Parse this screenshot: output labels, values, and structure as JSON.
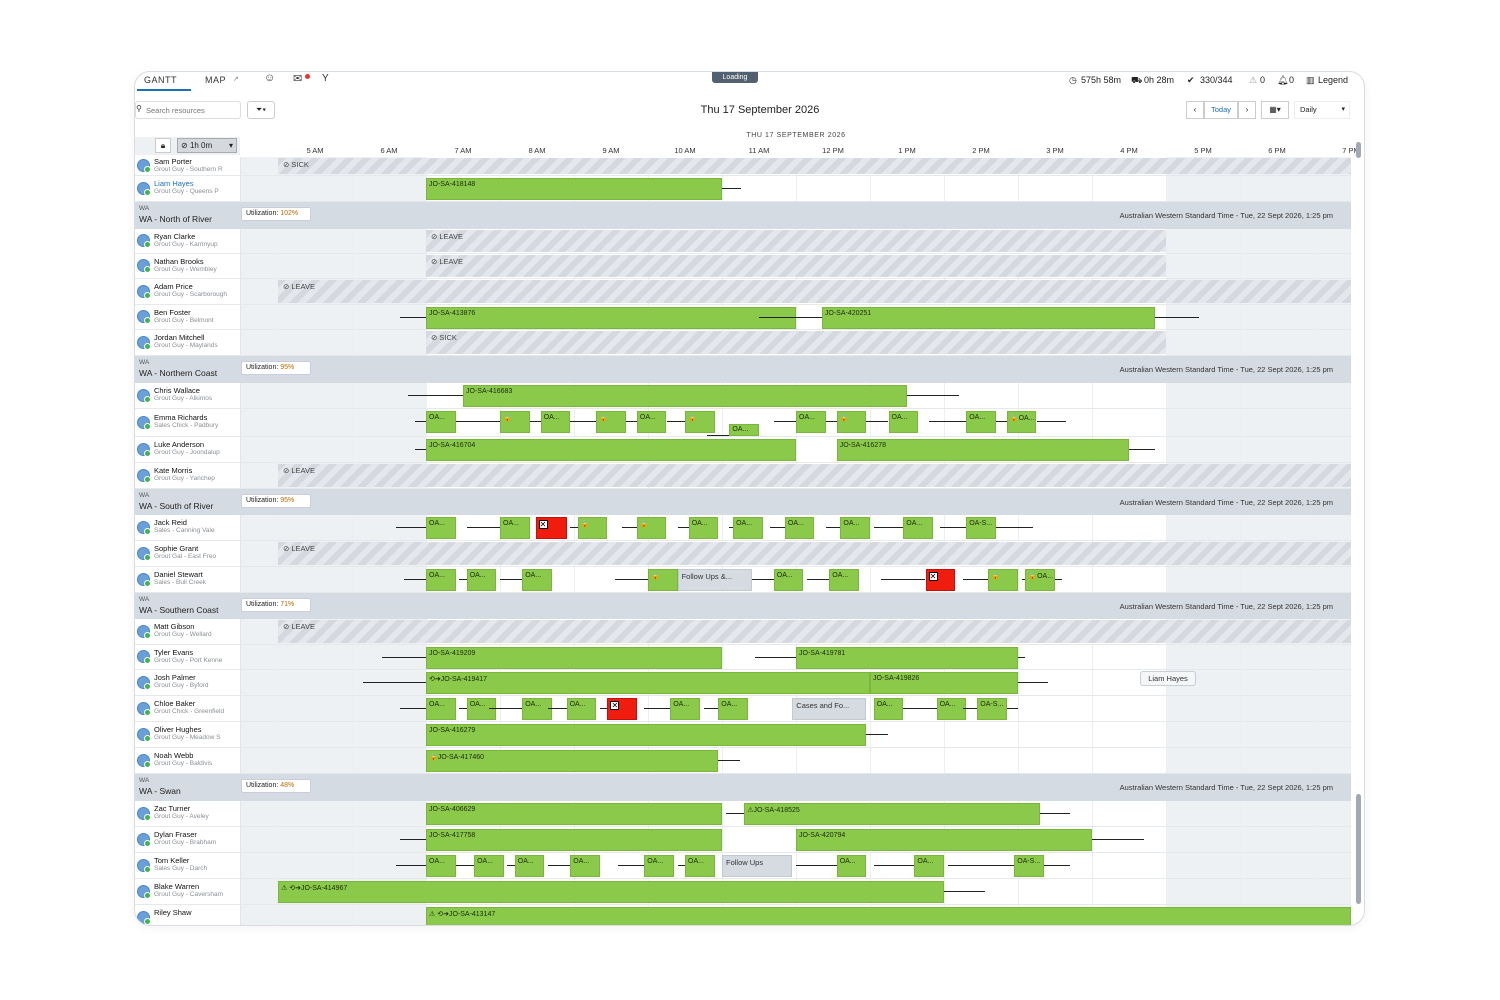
{
  "tabs": [
    {
      "label": "GANTT",
      "active": true
    },
    {
      "label": "MAP",
      "active": false
    }
  ],
  "loading_label": "Loading",
  "stats": {
    "hours": "575h 58m",
    "travel": "0h 28m",
    "appointments": "330/344",
    "rule_violations": "0",
    "notifications": "0",
    "legend": "Legend"
  },
  "toolbar": {
    "search_placeholder": "Search resources",
    "date_title": "Thu 17 September 2026",
    "today_label": "Today",
    "view_label": "Daily",
    "duration_label": "1h 0m"
  },
  "timeline": {
    "date_header": "THU 17 SEPTEMBER 2026",
    "hours": [
      "5 AM",
      "6 AM",
      "7 AM",
      "8 AM",
      "9 AM",
      "10 AM",
      "11 AM",
      "12 PM",
      "1 PM",
      "2 PM",
      "3 PM",
      "4 PM",
      "5 PM",
      "6 PM",
      "7 PM"
    ]
  },
  "timezone_note": "Australian Western Standard Time - Tue, 22 Sept 2026, 1:25 pm",
  "tooltip": "Liam Hayes",
  "rows": [
    {
      "type": "resource",
      "name": "Sam Porter",
      "sub": "Grout Guy - Southern R",
      "h": 19,
      "absence": {
        "label": "SICK",
        "start": 5,
        "end": 20.0
      }
    },
    {
      "type": "resource",
      "name": "Liam Hayes",
      "sub": "Grout Guy - Queens P",
      "link": true,
      "h": 26,
      "jobs": [
        {
          "label": "JO-SA-418148",
          "start": 7.0,
          "end": 11.0,
          "travelAfter": 0.25,
          "travelBefore": 0.0
        }
      ]
    },
    {
      "type": "region",
      "code": "WA",
      "title": "WA - North of River",
      "util": "102%",
      "h": 27
    },
    {
      "type": "resource",
      "name": "Ryan Clarke",
      "sub": "Grout Guy - Karrinyup",
      "h": 25,
      "absence": {
        "label": "LEAVE",
        "start": 7.0,
        "end": 17.0
      }
    },
    {
      "type": "resource",
      "name": "Nathan Brooks",
      "sub": "Grout Guy - Wembley",
      "h": 25,
      "absence": {
        "label": "LEAVE",
        "start": 7.0,
        "end": 17.0
      }
    },
    {
      "type": "resource",
      "name": "Adam Price",
      "sub": "Grout Guy - Scarborough",
      "h": 26,
      "absence": {
        "label": "LEAVE",
        "start": 5,
        "end": 20.0
      }
    },
    {
      "type": "resource",
      "name": "Ben Foster",
      "sub": "Grout Guy - Belmont",
      "h": 25,
      "jobs": [
        {
          "label": "JO-SA-413876",
          "start": 7.0,
          "end": 12.0,
          "travelBefore": 0.35
        },
        {
          "label": "JO-SA-420251",
          "start": 12.35,
          "end": 16.85,
          "travelBefore": 0.85,
          "travelAfter": 0.6
        }
      ]
    },
    {
      "type": "resource",
      "name": "Jordan Mitchell",
      "sub": "Grout Guy - Maylands",
      "h": 26,
      "absence": {
        "label": "SICK",
        "start": 7.0,
        "end": 17.0
      }
    },
    {
      "type": "region",
      "code": "WA",
      "title": "WA - Northern Coast",
      "util": "95%",
      "h": 27
    },
    {
      "type": "resource",
      "name": "Chris Wallace",
      "sub": "Grout Guy - Alkimos",
      "h": 26,
      "jobs": [
        {
          "label": "JO-SA-416683",
          "start": 7.5,
          "end": 13.5,
          "travelBefore": 0.75,
          "travelAfter": 0.7
        }
      ]
    },
    {
      "type": "resource",
      "name": "Emma Richards",
      "sub": "Sales Chick - Padbury",
      "h": 28,
      "small": true,
      "jobs": [
        {
          "label": "OA...",
          "start": 7.0,
          "end": 7.4,
          "travelBefore": 0.15
        },
        {
          "label": "🔒",
          "start": 8.0,
          "end": 8.4,
          "travelBefore": 0.6
        },
        {
          "label": "OA...",
          "start": 8.55,
          "end": 8.95,
          "travelBefore": 0.15
        },
        {
          "label": "🔒",
          "start": 9.3,
          "end": 9.7,
          "travelBefore": 0.35
        },
        {
          "label": "OA...",
          "start": 9.85,
          "end": 10.25,
          "travelBefore": 0.15
        },
        {
          "label": "🔒",
          "start": 10.5,
          "end": 10.9,
          "travelBefore": 0.25
        },
        {
          "label": "OA...",
          "start": 12.0,
          "end": 12.4,
          "travelBefore": 0.3
        },
        {
          "label": "🔒",
          "start": 12.55,
          "end": 12.95,
          "travelBefore": 0.15
        },
        {
          "label": "OA...",
          "start": 13.25,
          "end": 13.65,
          "travelBefore": 0.3
        },
        {
          "label": "OA...",
          "start": 14.3,
          "end": 14.7,
          "travelBefore": 0.5
        },
        {
          "label": "🔒OA...",
          "start": 14.85,
          "end": 15.25,
          "travelBefore": 0.15,
          "travelAfter": 0.4
        },
        {
          "label": "OA...",
          "start": 11.1,
          "end": 11.5,
          "travelBefore": 0.3,
          "lower": true
        }
      ]
    },
    {
      "type": "resource",
      "name": "Luke Anderson",
      "sub": "Grout Guy - Joondalup",
      "h": 26,
      "jobs": [
        {
          "label": "JO-SA-416704",
          "start": 7.0,
          "end": 12.0,
          "travelBefore": 0.15
        },
        {
          "label": "JO-SA-416278",
          "start": 12.55,
          "end": 16.5,
          "travelAfter": 0.35
        }
      ]
    },
    {
      "type": "resource",
      "name": "Kate Morris",
      "sub": "Grout Guy - Yanchep",
      "h": 26,
      "absence": {
        "label": "LEAVE",
        "start": 5,
        "end": 20.0
      }
    },
    {
      "type": "region",
      "code": "WA",
      "title": "WA - South of River",
      "util": "95%",
      "h": 26
    },
    {
      "type": "resource",
      "name": "Jack Reid",
      "sub": "Sales - Canning Vale",
      "h": 26,
      "small": true,
      "jobs": [
        {
          "label": "OA...",
          "start": 7.0,
          "end": 7.4,
          "travelBefore": 0.4
        },
        {
          "label": "OA...",
          "start": 8.0,
          "end": 8.4,
          "travelBefore": 0.45
        },
        {
          "label": "X",
          "start": 8.0,
          "end": 8.0,
          "red": true,
          "rstart": 8.48,
          "rend": 8.9
        },
        {
          "label": "🔒",
          "start": 9.05,
          "end": 9.45,
          "travelBefore": 0.1
        },
        {
          "label": "🔒",
          "start": 9.85,
          "end": 10.25,
          "travelBefore": 0.2
        },
        {
          "label": "OA...",
          "start": 10.55,
          "end": 10.95,
          "travelBefore": 0.15
        },
        {
          "label": "OA...",
          "start": 11.15,
          "end": 11.55,
          "travelBefore": 0.05
        },
        {
          "label": "OA...",
          "start": 11.85,
          "end": 12.25,
          "travelBefore": 0.2
        },
        {
          "label": "OA...",
          "start": 12.6,
          "end": 13.0,
          "travelBefore": 0.2
        },
        {
          "label": "OA...",
          "start": 13.45,
          "end": 13.85,
          "travelBefore": 0.4
        },
        {
          "label": "OA-S...",
          "start": 14.3,
          "end": 14.7,
          "travelBefore": 0.35,
          "travelAfter": 0.5
        }
      ]
    },
    {
      "type": "resource",
      "name": "Sophie Grant",
      "sub": "Grout Gal - East Freo",
      "h": 26,
      "absence": {
        "label": "LEAVE",
        "start": 5,
        "end": 20.0
      }
    },
    {
      "type": "resource",
      "name": "Daniel Stewart",
      "sub": "Sales - Bull Creek",
      "h": 26,
      "small": true,
      "jobs": [
        {
          "label": "OA...",
          "start": 7.0,
          "end": 7.4,
          "travelBefore": 0.3
        },
        {
          "label": "OA...",
          "start": 7.55,
          "end": 7.95,
          "travelBefore": 0.1
        },
        {
          "label": "OA...",
          "start": 8.3,
          "end": 8.7,
          "travelBefore": 0.3
        },
        {
          "label": "🔒",
          "start": 10.0,
          "end": 10.4,
          "travelBefore": 0.45
        },
        {
          "label": "Follow Ups &...",
          "start": 10.4,
          "end": 11.4,
          "grey": true
        },
        {
          "label": "OA...",
          "start": 11.7,
          "end": 12.1,
          "travelBefore": 0.3
        },
        {
          "label": "OA...",
          "start": 12.45,
          "end": 12.85,
          "travelBefore": 0.3
        },
        {
          "label": "X",
          "start": 13.75,
          "end": 14.15,
          "red": true,
          "travelBefore": 0.6
        },
        {
          "label": "🔒",
          "start": 14.6,
          "end": 15.0,
          "travelBefore": 0.35
        },
        {
          "label": "🔒OA...",
          "start": 15.1,
          "end": 15.5,
          "travelBefore": 0.05,
          "travelAfter": 0.1
        }
      ]
    },
    {
      "type": "region",
      "code": "WA",
      "title": "WA - Southern Coast",
      "util": "71%",
      "h": 26
    },
    {
      "type": "resource",
      "name": "Matt Gibson",
      "sub": "Grout Guy - Wellard",
      "h": 26,
      "absence": {
        "label": "LEAVE",
        "start": 5,
        "end": 20.0
      }
    },
    {
      "type": "resource",
      "name": "Tyler Evans",
      "sub": "Grout Guy - Port Kenne",
      "h": 25,
      "jobs": [
        {
          "label": "JO-SA-419209",
          "start": 7.0,
          "end": 11.0,
          "travelBefore": 0.6
        },
        {
          "label": "JO-SA-419781",
          "start": 12.0,
          "end": 15.0,
          "travelBefore": 0.55,
          "travelAfter": 0.1
        }
      ]
    },
    {
      "type": "resource",
      "name": "Josh Palmer",
      "sub": "Grout Guy - Byford",
      "h": 26,
      "jobs": [
        {
          "label": "⟲➜JO-SA-419417",
          "start": 7.0,
          "end": 13.0,
          "travelBefore": 0.85
        },
        {
          "label": "JO-SA-419826",
          "start": 13.0,
          "end": 15.0,
          "travelAfter": 0.4
        }
      ]
    },
    {
      "type": "resource",
      "name": "Chloe Baker",
      "sub": "Grout Chick - Greenfield",
      "h": 26,
      "small": true,
      "jobs": [
        {
          "label": "OA...",
          "start": 7.0,
          "end": 7.4,
          "travelBefore": 0.35
        },
        {
          "label": "OA...",
          "start": 7.55,
          "end": 7.95,
          "travelBefore": 0.1
        },
        {
          "label": "OA...",
          "start": 8.3,
          "end": 8.7,
          "travelBefore": 0.45
        },
        {
          "label": "OA...",
          "start": 8.9,
          "end": 9.3,
          "travelBefore": 0.25
        },
        {
          "label": "X",
          "start": 9.45,
          "end": 9.85,
          "red": true,
          "travelBefore": 0.1
        },
        {
          "label": "OA...",
          "start": 10.3,
          "end": 10.7,
          "travelBefore": 0.35
        },
        {
          "label": "OA...",
          "start": 10.95,
          "end": 11.35,
          "travelBefore": 0.2
        },
        {
          "label": "Cases and Fo...",
          "start": 11.95,
          "end": 12.95,
          "grey": true
        },
        {
          "label": "OA...",
          "start": 13.05,
          "end": 13.45
        },
        {
          "label": "OA...",
          "start": 13.9,
          "end": 14.3,
          "travelBefore": 0.45
        },
        {
          "label": "OA-S...",
          "start": 14.45,
          "end": 14.85,
          "travelBefore": 0.2,
          "travelAfter": 0.15
        }
      ]
    },
    {
      "type": "resource",
      "name": "Oliver Hughes",
      "sub": "Grout Guy - Meadow S",
      "h": 26,
      "jobs": [
        {
          "label": "JO-SA-416279",
          "start": 7.0,
          "end": 12.95,
          "travelAfter": 0.3
        }
      ]
    },
    {
      "type": "resource",
      "name": "Noah Webb",
      "sub": "Grout Guy - Baldivis",
      "h": 26,
      "jobs": [
        {
          "label": "🔒JO-SA-417460",
          "start": 7.0,
          "end": 10.95,
          "travelAfter": 0.3
        }
      ]
    },
    {
      "type": "region",
      "code": "WA",
      "title": "WA - Swan",
      "util": "48%",
      "h": 27
    },
    {
      "type": "resource",
      "name": "Zac Turner",
      "sub": "Grout Guy - Aveley",
      "h": 26,
      "jobs": [
        {
          "label": "JO-SA-406629",
          "start": 7.0,
          "end": 11.0,
          "travelBefore": 0.0
        },
        {
          "label": "⚠JO-SA-418525",
          "start": 11.3,
          "end": 15.3,
          "travelBefore": 0.25,
          "travelAfter": 0.4
        }
      ]
    },
    {
      "type": "resource",
      "name": "Dylan Fraser",
      "sub": "Grout Guy - Brabham",
      "h": 26,
      "jobs": [
        {
          "label": "JO-SA-417758",
          "start": 7.0,
          "end": 11.0,
          "travelBefore": 0.35
        },
        {
          "label": "JO-SA-420794",
          "start": 12.0,
          "end": 16.0,
          "travelAfter": 0.7
        }
      ]
    },
    {
      "type": "resource",
      "name": "Tom Keller",
      "sub": "Sales Guy - Darch",
      "h": 26,
      "small": true,
      "jobs": [
        {
          "label": "OA...",
          "start": 7.0,
          "end": 7.4,
          "travelBefore": 0.4
        },
        {
          "label": "OA...",
          "start": 7.65,
          "end": 8.05,
          "travelBefore": 0.25
        },
        {
          "label": "OA...",
          "start": 8.2,
          "end": 8.6,
          "travelBefore": 0.1
        },
        {
          "label": "OA...",
          "start": 8.95,
          "end": 9.35,
          "travelBefore": 0.3
        },
        {
          "label": "OA...",
          "start": 9.95,
          "end": 10.35,
          "travelBefore": 0.35
        },
        {
          "label": "OA...",
          "start": 10.5,
          "end": 10.9,
          "travelBefore": 0.1
        },
        {
          "label": "Follow Ups",
          "start": 11.0,
          "end": 11.95,
          "grey": true
        },
        {
          "label": "OA...",
          "start": 12.55,
          "end": 12.95,
          "travelBefore": 0.55
        },
        {
          "label": "OA...",
          "start": 13.6,
          "end": 14.0,
          "travelBefore": 0.55
        },
        {
          "label": "OA-S...",
          "start": 14.95,
          "end": 15.35,
          "travelBefore": 0.9,
          "travelAfter": 0.35
        }
      ]
    },
    {
      "type": "resource",
      "name": "Blake Warren",
      "sub": "Grout Guy - Caversham",
      "h": 26,
      "jobs": [
        {
          "label": "⚠ ⟲➜JO-SA-414967",
          "start": 5.0,
          "end": 14.0,
          "travelAfter": 0.55
        }
      ]
    },
    {
      "type": "resource",
      "name": "Riley Shaw",
      "sub": "",
      "h": 26,
      "jobs": [
        {
          "label": "⚠ ⟲➜JO-SA-413147",
          "start": 7.0,
          "end": 20.0
        }
      ]
    }
  ]
}
